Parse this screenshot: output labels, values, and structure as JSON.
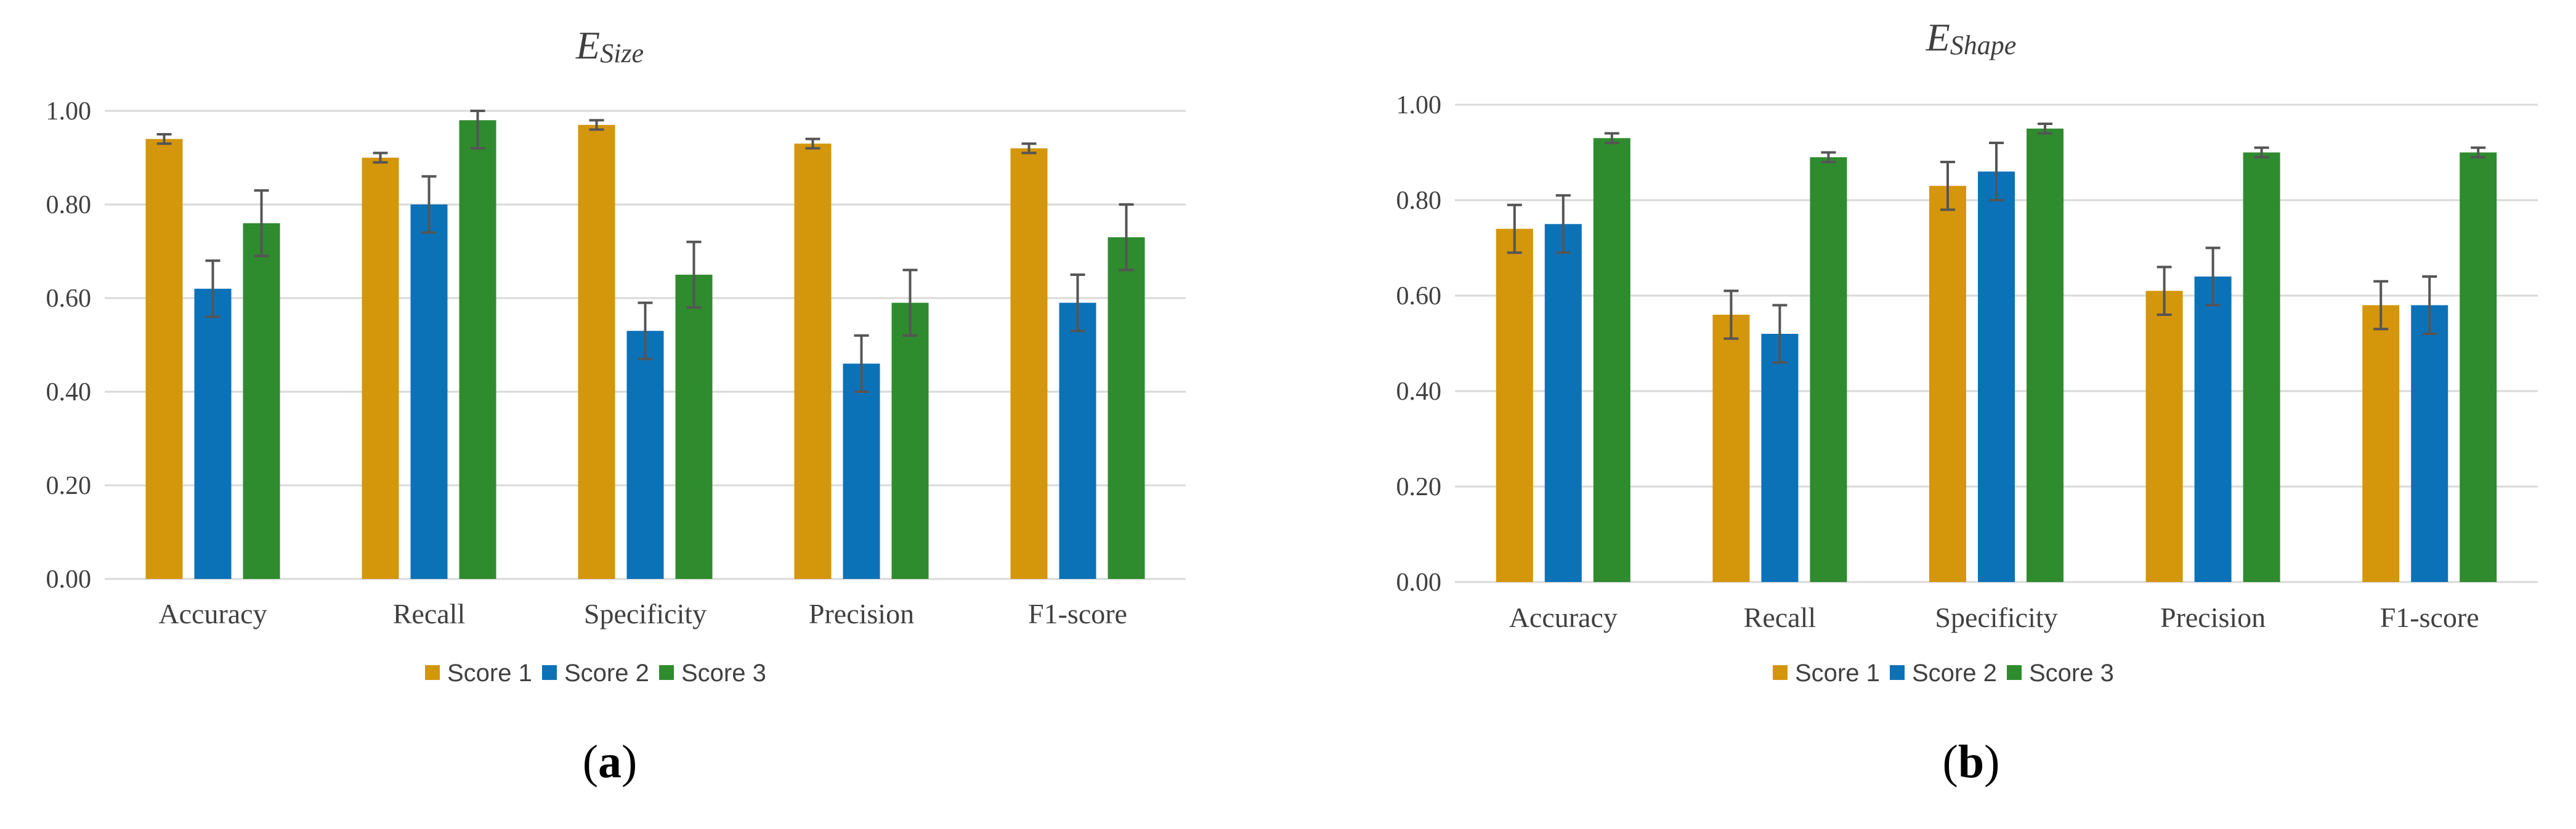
{
  "colors": {
    "score1": "#D4960A",
    "score2": "#0B72B8",
    "score3": "#2E8B2E",
    "grid": "#D9D9D9",
    "error": "#555555"
  },
  "legend": [
    "Score 1",
    "Score 2",
    "Score 3"
  ],
  "chart_data": [
    {
      "type": "bar",
      "title_main": "E",
      "title_sub": "Size",
      "panel_label": "a",
      "categories": [
        "Accuracy",
        "Recall",
        "Specificity",
        "Precision",
        "F1-score"
      ],
      "ylim": [
        0,
        1.0
      ],
      "yticks": [
        "0.00",
        "0.20",
        "0.40",
        "0.60",
        "0.80",
        "1.00"
      ],
      "series": [
        {
          "name": "Score 1",
          "values": [
            0.94,
            0.9,
            0.97,
            0.93,
            0.92
          ],
          "errors": [
            0.01,
            0.01,
            0.01,
            0.01,
            0.01
          ]
        },
        {
          "name": "Score 2",
          "values": [
            0.62,
            0.8,
            0.53,
            0.46,
            0.59
          ],
          "errors": [
            0.06,
            0.06,
            0.06,
            0.06,
            0.06
          ]
        },
        {
          "name": "Score 3",
          "values": [
            0.76,
            0.98,
            0.65,
            0.59,
            0.73
          ],
          "errors": [
            0.07,
            0.06,
            0.07,
            0.07,
            0.07
          ]
        }
      ]
    },
    {
      "type": "bar",
      "title_main": "E",
      "title_sub": "Shape",
      "panel_label": "b",
      "categories": [
        "Accuracy",
        "Recall",
        "Specificity",
        "Precision",
        "F1-score"
      ],
      "ylim": [
        0,
        1.0
      ],
      "yticks": [
        "0.00",
        "0.20",
        "0.40",
        "0.60",
        "0.80",
        "1.00"
      ],
      "series": [
        {
          "name": "Score 1",
          "values": [
            0.74,
            0.56,
            0.83,
            0.61,
            0.58
          ],
          "errors": [
            0.05,
            0.05,
            0.05,
            0.05,
            0.05
          ]
        },
        {
          "name": "Score 2",
          "values": [
            0.75,
            0.52,
            0.86,
            0.64,
            0.58
          ],
          "errors": [
            0.06,
            0.06,
            0.06,
            0.06,
            0.06
          ]
        },
        {
          "name": "Score 3",
          "values": [
            0.93,
            0.89,
            0.95,
            0.9,
            0.9
          ],
          "errors": [
            0.01,
            0.01,
            0.01,
            0.01,
            0.01
          ]
        }
      ]
    }
  ]
}
